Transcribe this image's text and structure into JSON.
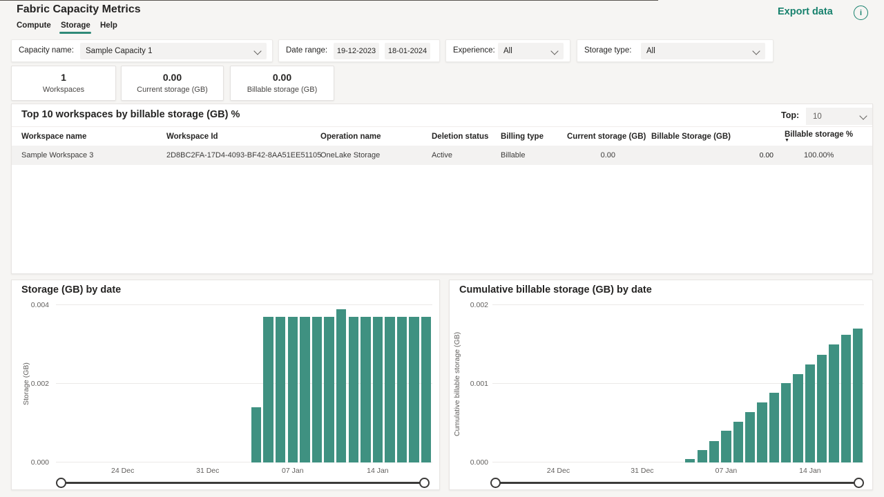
{
  "header": {
    "title": "Fabric Capacity Metrics",
    "tabs": [
      {
        "label": "Compute",
        "active": false
      },
      {
        "label": "Storage",
        "active": true
      },
      {
        "label": "Help",
        "active": false
      }
    ],
    "export_label": "Export data"
  },
  "filters": {
    "capacity": {
      "label": "Capacity name:",
      "value": "Sample Capacity 1"
    },
    "date_range": {
      "label": "Date range:",
      "start": "19-12-2023",
      "end": "18-01-2024"
    },
    "experience": {
      "label": "Experience:",
      "value": "All"
    },
    "storage_type": {
      "label": "Storage type:",
      "value": "All"
    }
  },
  "kpis": [
    {
      "value": "1",
      "label": "Workspaces"
    },
    {
      "value": "0.00",
      "label": "Current storage (GB)"
    },
    {
      "value": "0.00",
      "label": "Billable storage (GB)"
    }
  ],
  "table": {
    "title": "Top 10 workspaces by billable storage (GB) %",
    "top_label": "Top:",
    "top_value": "10",
    "columns": [
      "Workspace name",
      "Workspace Id",
      "Operation name",
      "Deletion status",
      "Billing type",
      "Current storage (GB)",
      "Billable Storage (GB)",
      "Billable storage %"
    ],
    "sorted_by": "Billable storage %",
    "sort_indicator": "▼",
    "rows": [
      {
        "workspace_name": "Sample Workspace 3",
        "workspace_id": "2D8BC2FA-17D4-4093-BF42-8AA51EE51105",
        "operation_name": "OneLake Storage",
        "deletion_status": "Active",
        "billing_type": "Billable",
        "current_storage_gb": "0.00",
        "billable_storage_gb": "0.00",
        "billable_storage_pct": "100.00%"
      }
    ]
  },
  "chart_data": [
    {
      "type": "bar",
      "title": "Storage (GB) by date",
      "xlabel": "",
      "ylabel": "Storage (GB)",
      "ylim": [
        0,
        0.004
      ],
      "yticks": [
        0,
        0.002,
        0.004
      ],
      "ytick_labels": [
        "0.000",
        "0.002",
        "0.004"
      ],
      "xtick_labels": [
        "24 Dec",
        "31 Dec",
        "07 Jan",
        "14 Jan"
      ],
      "tick_day_indices": [
        5,
        12,
        19,
        26
      ],
      "total_days": 31,
      "first_bar_day_index": 16,
      "x_range": [
        "19 Dec 2023",
        "18 Jan 2024"
      ],
      "x": [
        "04 Jan",
        "05 Jan",
        "06 Jan",
        "07 Jan",
        "08 Jan",
        "09 Jan",
        "10 Jan",
        "11 Jan",
        "12 Jan",
        "13 Jan",
        "14 Jan",
        "15 Jan",
        "16 Jan",
        "17 Jan",
        "18 Jan"
      ],
      "values": [
        0.0014,
        0.0037,
        0.0037,
        0.0037,
        0.0037,
        0.0037,
        0.0037,
        0.0039,
        0.0037,
        0.0037,
        0.0037,
        0.0037,
        0.0037,
        0.0037,
        0.0037
      ],
      "bar_color": "#3f9181",
      "grid": true,
      "legend": false
    },
    {
      "type": "bar",
      "title": "Cumulative billable storage (GB) by date",
      "xlabel": "",
      "ylabel": "Cumulative billable storage (GB)",
      "ylim": [
        0,
        0.002
      ],
      "yticks": [
        0,
        0.001,
        0.002
      ],
      "ytick_labels": [
        "0.000",
        "0.001",
        "0.002"
      ],
      "xtick_labels": [
        "24 Dec",
        "31 Dec",
        "07 Jan",
        "14 Jan"
      ],
      "tick_day_indices": [
        5,
        12,
        19,
        26
      ],
      "total_days": 31,
      "first_bar_day_index": 16,
      "x_range": [
        "19 Dec 2023",
        "18 Jan 2024"
      ],
      "x": [
        "04 Jan",
        "05 Jan",
        "06 Jan",
        "07 Jan",
        "08 Jan",
        "09 Jan",
        "10 Jan",
        "11 Jan",
        "12 Jan",
        "13 Jan",
        "14 Jan",
        "15 Jan",
        "16 Jan",
        "17 Jan",
        "18 Jan"
      ],
      "values": [
        4e-05,
        0.00016,
        0.00027,
        0.0004,
        0.00052,
        0.00064,
        0.00076,
        0.00089,
        0.00101,
        0.00112,
        0.00125,
        0.00137,
        0.0015,
        0.00162,
        0.0017
      ],
      "bar_color": "#3f9181",
      "grid": true,
      "legend": false
    }
  ],
  "colors": {
    "accent_teal": "#17816d",
    "bar_teal": "#3f9181",
    "tab_underline": "#2f8a78",
    "page_bg": "#f6f5f3",
    "card_bg": "#ffffff",
    "row_bg": "#f3f2f1",
    "text_primary": "#252423",
    "text_secondary": "#605e5c"
  }
}
